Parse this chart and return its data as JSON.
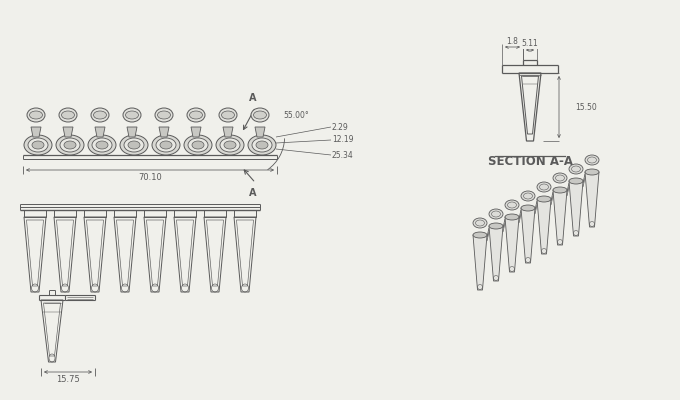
{
  "bg_color": "#f0f0eb",
  "line_color": "#5a5a5a",
  "dim_color": "#5a5a5a",
  "section_label": "SECTION A-A",
  "dims": {
    "total_width": "70.10",
    "pitch": "12.19",
    "cap_angle": "55.00°",
    "dim_229": "2.29",
    "dim_2534": "25.34",
    "dim_1375": "15.75",
    "dim_1550": "15.50",
    "dim_5311": "5.11",
    "dim_18": "1.8"
  },
  "n_tubes": 8
}
